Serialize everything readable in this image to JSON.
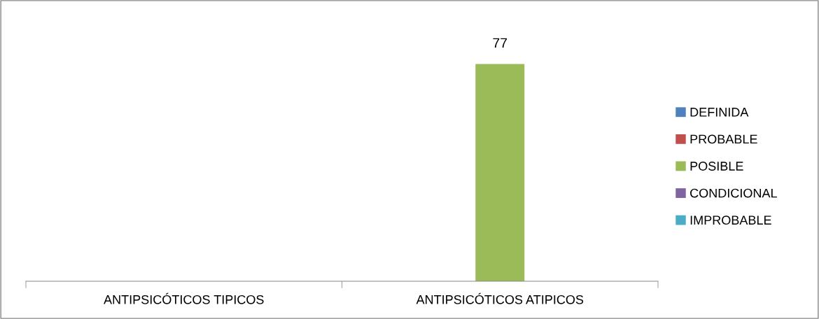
{
  "chart_data": {
    "type": "bar",
    "categories": [
      "ANTIPSICÓTICOS TIPICOS",
      "ANTIPSICÓTICOS ATIPICOS"
    ],
    "series": [
      {
        "name": "DEFINIDA",
        "color": "#4f81bd",
        "values": [
          null,
          null
        ]
      },
      {
        "name": "PROBABLE",
        "color": "#c0504d",
        "values": [
          null,
          null
        ]
      },
      {
        "name": "POSIBLE",
        "color": "#9bbb59",
        "values": [
          null,
          77
        ]
      },
      {
        "name": "CONDICIONAL",
        "color": "#8064a2",
        "values": [
          null,
          null
        ]
      },
      {
        "name": "IMPROBABLE",
        "color": "#4bacc6",
        "values": [
          null,
          null
        ]
      }
    ],
    "data_labels": true,
    "tick_labels": "x",
    "grid": false,
    "legend": "right"
  }
}
